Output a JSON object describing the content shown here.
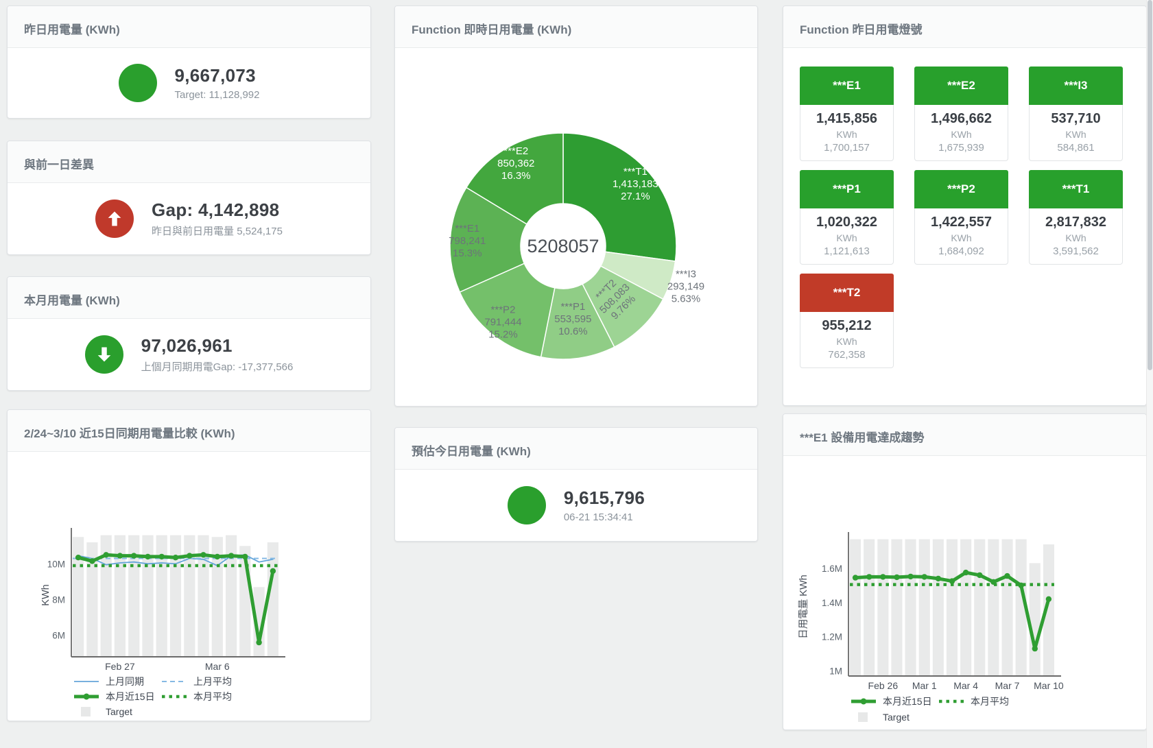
{
  "stats": {
    "yesterday": {
      "title": "昨日用電量 (KWh)",
      "value": "9,667,073",
      "sub": "Target: 11,128,992",
      "status": "green"
    },
    "gap": {
      "title": "與前一日差異",
      "value": "Gap: 4,142,898",
      "sub": "昨日與前日用電量 5,524,175",
      "status": "red"
    },
    "month": {
      "title": "本月用電量 (KWh)",
      "value": "97,026,961",
      "sub": "上個月同期用電Gap: -17,377,566",
      "status": "green"
    },
    "estimate": {
      "title": "預估今日用電量 (KWh)",
      "value": "9,615,796",
      "sub": "06-21 15:34:41",
      "status": "green"
    }
  },
  "lights_card": {
    "title": "Function 昨日用電燈號",
    "tiles": [
      {
        "label": "***E1",
        "value": "1,415,856",
        "unit": "KWh",
        "target": "1,700,157",
        "status": "green"
      },
      {
        "label": "***E2",
        "value": "1,496,662",
        "unit": "KWh",
        "target": "1,675,939",
        "status": "green"
      },
      {
        "label": "***I3",
        "value": "537,710",
        "unit": "KWh",
        "target": "584,861",
        "status": "green"
      },
      {
        "label": "***P1",
        "value": "1,020,322",
        "unit": "KWh",
        "target": "1,121,613",
        "status": "green"
      },
      {
        "label": "***P2",
        "value": "1,422,557",
        "unit": "KWh",
        "target": "1,684,092",
        "status": "green"
      },
      {
        "label": "***T1",
        "value": "2,817,832",
        "unit": "KWh",
        "target": "3,591,562",
        "status": "green"
      },
      {
        "label": "***T2",
        "value": "955,212",
        "unit": "KWh",
        "target": "762,358",
        "status": "red"
      }
    ]
  },
  "chart_data": [
    {
      "type": "pie",
      "title": "Function 即時日用電量 (KWh)",
      "center_total": "5208057",
      "slices": [
        {
          "name": "***T1",
          "value": 1413183,
          "label_value": "1,413,183",
          "pct": "27.1%"
        },
        {
          "name": "***I3",
          "value": 293149,
          "label_value": "293,149",
          "pct": "5.63%",
          "outside": true
        },
        {
          "name": "***T2",
          "value": 508083,
          "label_value": "508,083",
          "pct": "9.76%",
          "rotate": true
        },
        {
          "name": "***P1",
          "value": 553595,
          "label_value": "553,595",
          "pct": "10.6%"
        },
        {
          "name": "***P2",
          "value": 791444,
          "label_value": "791,444",
          "pct": "15.2%"
        },
        {
          "name": "***E1",
          "value": 798241,
          "label_value": "798,241",
          "pct": "15.3%"
        },
        {
          "name": "***E2",
          "value": 850362,
          "label_value": "850,362",
          "pct": "16.3%"
        }
      ],
      "colors": [
        "#2e9d32",
        "#cfeac6",
        "#9dd494",
        "#90cd86",
        "#74c06a",
        "#5cb254",
        "#43a73e"
      ]
    },
    {
      "type": "line",
      "title": "2/24~3/10 近15日同期用電量比較 (KWh)",
      "ylabel": "KWh",
      "ylim": [
        4.8,
        11.7
      ],
      "yticks": [
        {
          "v": 6,
          "label": "6M"
        },
        {
          "v": 8,
          "label": "8M"
        },
        {
          "v": 10,
          "label": "10M"
        }
      ],
      "xticks": [
        {
          "i": 3,
          "label": "Feb 27"
        },
        {
          "i": 10,
          "label": "Mar 6"
        }
      ],
      "grid": false,
      "legend_position": "bottom",
      "target": {
        "name": "Target",
        "color": "#e9eaea",
        "values": [
          11.5,
          11.2,
          11.6,
          11.6,
          11.6,
          11.6,
          11.6,
          11.6,
          11.6,
          11.6,
          11.5,
          11.6,
          11.0,
          8.7,
          11.2
        ]
      },
      "series": [
        {
          "name": "上月同期",
          "marker": "thin",
          "color": "#64a5d9",
          "values": [
            10.45,
            10.3,
            9.95,
            10.05,
            10.1,
            10.0,
            10.05,
            10.0,
            10.3,
            10.25,
            9.9,
            10.45,
            10.5,
            10.1,
            10.25
          ]
        },
        {
          "name": "上月平均",
          "marker": "dash",
          "color": "#85b9e4",
          "const": 10.3
        },
        {
          "name": "本月近15日",
          "marker": "thick",
          "color": "#2f9e32",
          "values": [
            10.35,
            10.15,
            10.5,
            10.45,
            10.45,
            10.4,
            10.4,
            10.35,
            10.45,
            10.5,
            10.4,
            10.45,
            10.4,
            5.6,
            9.6
          ]
        },
        {
          "name": "本月平均",
          "marker": "dot",
          "color": "#2f9e32",
          "const": 9.9
        }
      ],
      "legend_rows": [
        [
          "上月同期",
          "上月平均"
        ],
        [
          "本月近15日",
          "本月平均"
        ],
        [
          "Target"
        ]
      ]
    },
    {
      "type": "line",
      "title": "***E1 設備用電達成趨勢",
      "ylabel": "日用電量 KWh",
      "ylim": [
        0.97,
        1.78
      ],
      "yticks": [
        {
          "v": 1,
          "label": "1M"
        },
        {
          "v": 1.2,
          "label": "1.2M"
        },
        {
          "v": 1.4,
          "label": "1.4M"
        },
        {
          "v": 1.6,
          "label": "1.6M"
        }
      ],
      "xticks": [
        {
          "i": 2,
          "label": "Feb 26"
        },
        {
          "i": 5,
          "label": "Mar 1"
        },
        {
          "i": 8,
          "label": "Mar 4"
        },
        {
          "i": 11,
          "label": "Mar 7"
        },
        {
          "i": 14,
          "label": "Mar 10"
        }
      ],
      "grid": false,
      "legend_position": "bottom",
      "target": {
        "name": "Target",
        "color": "#e9eaea",
        "values": [
          1.77,
          1.77,
          1.77,
          1.77,
          1.77,
          1.77,
          1.77,
          1.77,
          1.77,
          1.77,
          1.77,
          1.77,
          1.77,
          1.63,
          1.74
        ]
      },
      "series": [
        {
          "name": "本月近15日",
          "marker": "thick",
          "color": "#2f9e32",
          "values": [
            1.545,
            1.55,
            1.55,
            1.548,
            1.552,
            1.55,
            1.54,
            1.525,
            1.575,
            1.56,
            1.52,
            1.555,
            1.5,
            1.13,
            1.42
          ]
        },
        {
          "name": "本月平均",
          "marker": "dot",
          "color": "#2f9e32",
          "const": 1.505
        }
      ],
      "legend_rows": [
        [
          "本月近15日",
          "本月平均"
        ],
        [
          "Target"
        ]
      ]
    }
  ],
  "colors": {
    "green": "#2a9f2d",
    "red": "#c0392b",
    "tile_green": "#28a02c",
    "tile_red": "#c13b28",
    "target_bar": "#e9eaea",
    "blue_line": "#64a5d9",
    "green_line": "#2f9e32"
  }
}
